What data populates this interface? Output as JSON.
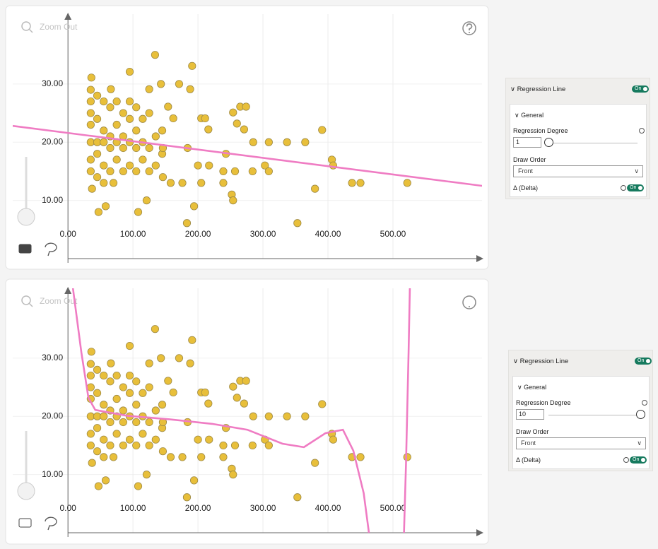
{
  "chart_data": [
    {
      "type": "scatter",
      "zoom_out": "Zoom Out",
      "color": "#e8bf3a",
      "x": [
        35,
        35,
        35,
        35,
        35,
        35,
        35,
        45,
        45,
        45,
        45,
        45,
        55,
        55,
        55,
        55,
        55,
        65,
        65,
        65,
        65,
        75,
        75,
        75,
        75,
        85,
        85,
        85,
        85,
        95,
        95,
        95,
        95,
        105,
        105,
        105,
        105,
        115,
        115,
        115,
        125,
        125,
        125,
        135,
        135,
        145,
        145,
        134,
        191,
        95,
        36,
        66,
        125,
        143,
        171,
        188,
        154,
        254,
        265,
        274,
        205,
        211,
        162,
        216,
        260,
        271,
        337,
        365,
        391,
        309,
        285,
        406,
        408,
        303,
        309,
        284,
        257,
        239,
        217,
        200,
        380,
        437,
        450,
        522,
        353,
        183,
        194,
        252,
        254,
        239,
        205,
        176,
        158,
        121,
        108,
        58,
        47,
        37,
        70,
        146,
        146,
        184,
        243
      ],
      "values": [
        29,
        27,
        25,
        23,
        20,
        17,
        15,
        28,
        24,
        20,
        18,
        14,
        27,
        22,
        20,
        16,
        13,
        26,
        21,
        19,
        15,
        27,
        23,
        20,
        17,
        25,
        21,
        19,
        15,
        27,
        24,
        20,
        16,
        26,
        22,
        19,
        15,
        24,
        20,
        17,
        25,
        19,
        15,
        21,
        16,
        22,
        18,
        35,
        33.1,
        32.1,
        31.1,
        29.1,
        29.1,
        30,
        30,
        29.1,
        26.1,
        25.1,
        26.1,
        26.1,
        24.1,
        24.1,
        24.1,
        22.2,
        23.2,
        22.2,
        20,
        20,
        22.1,
        20,
        20,
        17,
        16,
        16,
        15,
        15,
        15,
        15,
        16,
        16,
        12,
        13,
        13,
        13,
        6.1,
        6.1,
        9,
        11,
        10,
        13,
        13,
        13,
        13,
        10,
        8,
        9,
        8,
        12,
        13,
        14,
        19,
        19,
        18
      ],
      "regression": {
        "color": "#ef7cc3",
        "x": [
          -85,
          637
        ],
        "values": [
          22.8,
          12.5
        ]
      },
      "xlim": [
        -85,
        637
      ],
      "ylim": [
        0,
        42
      ],
      "xticks": [
        {
          "value": 0,
          "label": "0.00"
        },
        {
          "value": 100,
          "label": "100.00"
        },
        {
          "value": 200,
          "label": "200.00"
        },
        {
          "value": 300,
          "label": "300.00"
        },
        {
          "value": 400,
          "label": "400.00"
        },
        {
          "value": 500,
          "label": "500.00"
        }
      ],
      "yticks": [
        {
          "value": 10,
          "label": "10.00"
        },
        {
          "value": 20,
          "label": "20.00"
        },
        {
          "value": 30,
          "label": "30.00"
        }
      ],
      "grid": true
    },
    {
      "type": "scatter",
      "zoom_out": "Zoom Out",
      "color": "#e8bf3a",
      "x": [
        35,
        35,
        35,
        35,
        35,
        35,
        35,
        45,
        45,
        45,
        45,
        45,
        55,
        55,
        55,
        55,
        55,
        65,
        65,
        65,
        65,
        75,
        75,
        75,
        75,
        85,
        85,
        85,
        85,
        95,
        95,
        95,
        95,
        105,
        105,
        105,
        105,
        115,
        115,
        115,
        125,
        125,
        125,
        135,
        135,
        145,
        145,
        134,
        191,
        95,
        36,
        66,
        125,
        143,
        171,
        188,
        154,
        254,
        265,
        274,
        205,
        211,
        162,
        216,
        260,
        271,
        337,
        365,
        391,
        309,
        285,
        406,
        408,
        303,
        309,
        284,
        257,
        239,
        217,
        200,
        380,
        437,
        450,
        522,
        353,
        183,
        194,
        252,
        254,
        239,
        205,
        176,
        158,
        121,
        108,
        58,
        47,
        37,
        70,
        146,
        146,
        184,
        243
      ],
      "values": [
        29,
        27,
        25,
        23,
        20,
        17,
        15,
        28,
        24,
        20,
        18,
        14,
        27,
        22,
        20,
        16,
        13,
        26,
        21,
        19,
        15,
        27,
        23,
        20,
        17,
        25,
        21,
        19,
        15,
        27,
        24,
        20,
        16,
        26,
        22,
        19,
        15,
        24,
        20,
        17,
        25,
        19,
        15,
        21,
        16,
        22,
        18,
        35,
        33.1,
        32.1,
        31.1,
        29.1,
        29.1,
        30,
        30,
        29.1,
        26.1,
        25.1,
        26.1,
        26.1,
        24.1,
        24.1,
        24.1,
        22.2,
        23.2,
        22.2,
        20,
        20,
        22.1,
        20,
        20,
        17,
        16,
        16,
        15,
        15,
        15,
        15,
        16,
        16,
        12,
        13,
        13,
        13,
        6.1,
        6.1,
        9,
        11,
        10,
        13,
        13,
        13,
        13,
        10,
        8,
        9,
        8,
        12,
        13,
        14,
        19,
        19,
        18
      ],
      "regression": {
        "color": "#ef7cc3",
        "x": [
          7.6,
          20.6,
          31.5,
          42,
          91,
          156,
          222,
          276,
          330,
          363,
          396,
          423,
          439,
          455,
          463,
          null,
          517,
          520,
          524,
          526
        ],
        "values": [
          42,
          31,
          23.2,
          21.1,
          20.1,
          19.5,
          18.7,
          17.7,
          15.3,
          14.7,
          17.1,
          17.7,
          14.1,
          6.8,
          0,
          null,
          0,
          11.6,
          31,
          42
        ]
      },
      "xlim": [
        -85,
        637
      ],
      "ylim": [
        0,
        42
      ],
      "xticks": [
        {
          "value": 0,
          "label": "0.00"
        },
        {
          "value": 100,
          "label": "100.00"
        },
        {
          "value": 200,
          "label": "200.00"
        },
        {
          "value": 300,
          "label": "300.00"
        },
        {
          "value": 400,
          "label": "400.00"
        },
        {
          "value": 500,
          "label": "500.00"
        }
      ],
      "yticks": [
        {
          "value": 10,
          "label": "10.00"
        },
        {
          "value": 20,
          "label": "20.00"
        },
        {
          "value": 30,
          "label": "30.00"
        }
      ],
      "grid": true
    }
  ],
  "panels": [
    {
      "title": "Regression Line",
      "toggle": "On",
      "section": "General",
      "degree_label": "Regression Degree",
      "degree": 1,
      "order_label": "Draw Order",
      "order": "Front",
      "delta_label": "Δ (Delta)",
      "delta_toggle": "On"
    },
    {
      "title": "Regression Line",
      "toggle": "On",
      "section": "General",
      "degree_label": "Regression Degree",
      "degree": 10,
      "order_label": "Draw Order",
      "order": "Front",
      "delta_label": "Δ (Delta)",
      "delta_toggle": "On"
    }
  ]
}
